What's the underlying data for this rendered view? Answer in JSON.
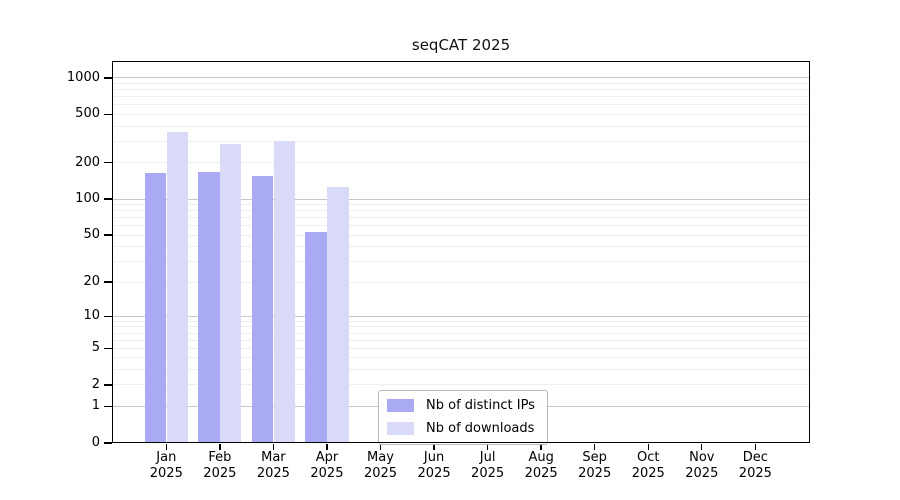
{
  "chart_data": {
    "type": "bar",
    "title": "seqCAT 2025",
    "y_axis": {
      "scale": "log10(value+1)",
      "ticks": [
        0,
        1,
        2,
        5,
        10,
        20,
        50,
        100,
        200,
        500,
        1000
      ],
      "gridlines_major": [
        1,
        10,
        100,
        1000
      ],
      "gridlines_minor": [
        2,
        3,
        4,
        5,
        6,
        7,
        8,
        9,
        20,
        30,
        40,
        50,
        60,
        70,
        80,
        90,
        200,
        300,
        400,
        500,
        600,
        700,
        800,
        900
      ],
      "range": [
        0,
        1000
      ],
      "grid": "on"
    },
    "x_axis": {
      "months": [
        {
          "month": "Jan",
          "year": "2025"
        },
        {
          "month": "Feb",
          "year": "2025"
        },
        {
          "month": "Mar",
          "year": "2025"
        },
        {
          "month": "Apr",
          "year": "2025"
        },
        {
          "month": "May",
          "year": "2025"
        },
        {
          "month": "Jun",
          "year": "2025"
        },
        {
          "month": "Jul",
          "year": "2025"
        },
        {
          "month": "Aug",
          "year": "2025"
        },
        {
          "month": "Sep",
          "year": "2025"
        },
        {
          "month": "Oct",
          "year": "2025"
        },
        {
          "month": "Nov",
          "year": "2025"
        },
        {
          "month": "Dec",
          "year": "2025"
        }
      ]
    },
    "series": [
      {
        "name": "Nb of distinct IPs",
        "color": "#a9a9f4",
        "values": [
          165,
          168,
          155,
          53,
          null,
          null,
          null,
          null,
          null,
          null,
          null,
          null
        ]
      },
      {
        "name": "Nb of downloads",
        "color": "#d9d9f8",
        "values": [
          360,
          285,
          300,
          127,
          null,
          null,
          null,
          null,
          null,
          null,
          null,
          null
        ]
      }
    ],
    "legend": {
      "position": "bottom-center"
    },
    "colors": {
      "grid_major": "#c7c7c7",
      "grid_minor": "#eeeeee",
      "spine": "#000000",
      "background": "#ffffff"
    }
  }
}
